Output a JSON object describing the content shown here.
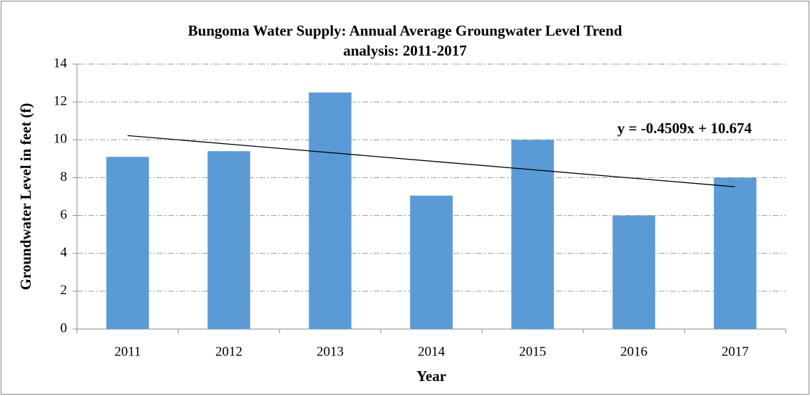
{
  "chart_data": {
    "type": "bar",
    "title": "Bungoma Water Supply: Annual Average Groungwater Level Trend analysis: 2011-2017",
    "x_label": "Year",
    "y_label": "Groundwater Level in feet (f)",
    "categories": [
      "2011",
      "2012",
      "2013",
      "2014",
      "2015",
      "2016",
      "2017"
    ],
    "values": [
      9.1,
      9.4,
      12.5,
      7.05,
      10,
      6,
      8
    ],
    "color": "#5b9bd5",
    "ylim": [
      0,
      14
    ],
    "yticks": [
      0,
      2,
      4,
      6,
      8,
      10,
      12,
      14
    ],
    "grid": true,
    "trendline": {
      "slope": -0.4509,
      "intercept": 10.674,
      "label": "y = -0.4509x + 10.674",
      "color": "#000000"
    }
  }
}
